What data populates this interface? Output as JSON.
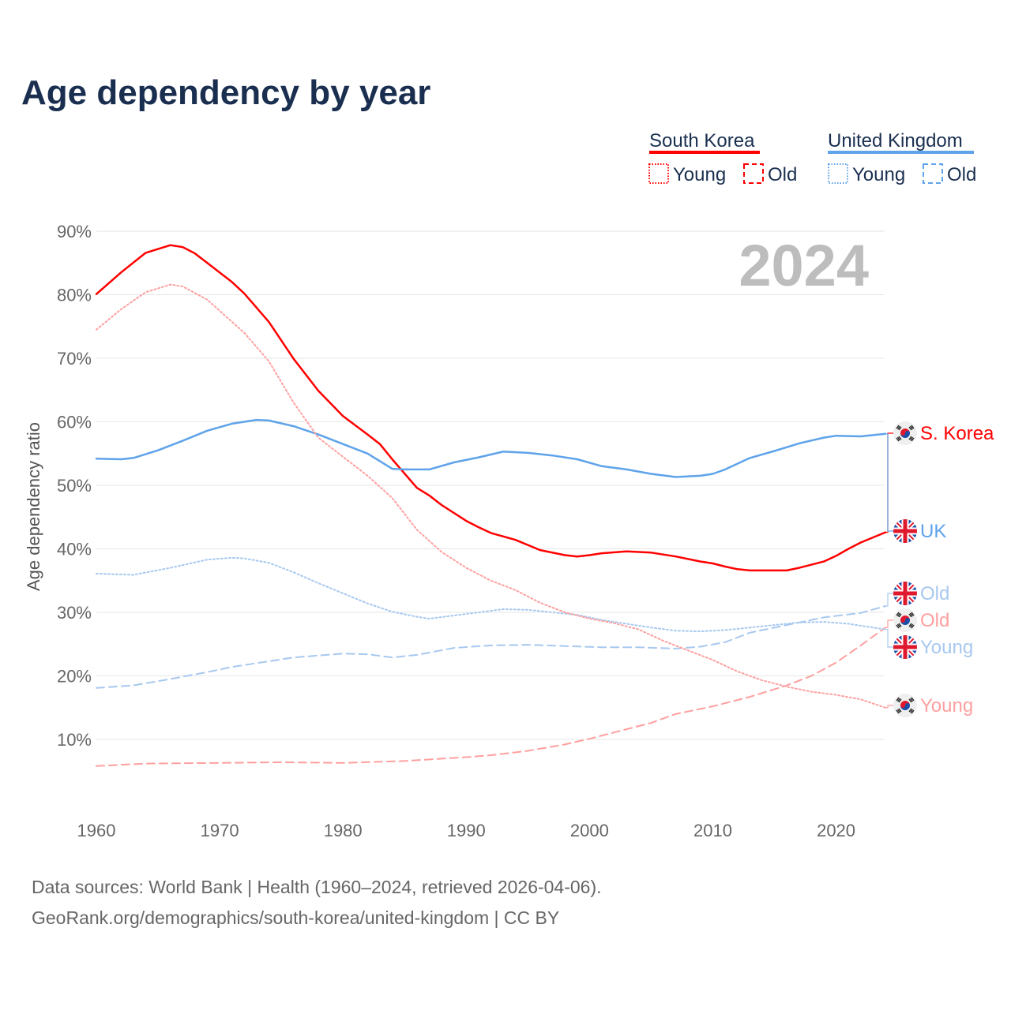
{
  "title": "Age dependency by year",
  "year_watermark": "2024",
  "legend": {
    "groups": [
      {
        "name": "South Korea",
        "color": "#ff0000",
        "sub_color": "#ff0000",
        "items": [
          "Young",
          "Old"
        ]
      },
      {
        "name": "United Kingdom",
        "color": "#5ea3ea",
        "sub_color": "#5ea3ea",
        "items": [
          "Young",
          "Old"
        ]
      }
    ]
  },
  "footer": {
    "line1": "Data sources: World Bank | Health (1960–2024, retrieved 2026-04-06).",
    "line2": "GeoRank.org/demographics/south-korea/united-kingdom | CC BY"
  },
  "chart_data": {
    "type": "line",
    "title": "Age dependency by year",
    "xlabel": "",
    "ylabel": "Age dependency ratio",
    "xlim": [
      1960,
      2024
    ],
    "ylim": [
      0,
      95
    ],
    "x_ticks": [
      1960,
      1970,
      1980,
      1990,
      2000,
      2010,
      2020
    ],
    "x_tick_labels": [
      "1960",
      "1970",
      "1980",
      "1990",
      "2000",
      "2010",
      "2020"
    ],
    "y_ticks": [
      10,
      20,
      30,
      40,
      50,
      60,
      70,
      80,
      90
    ],
    "y_tick_labels": [
      "10%",
      "20%",
      "30%",
      "40%",
      "50%",
      "60%",
      "70%",
      "80%",
      "90%"
    ],
    "grid": true,
    "legend_position": "top-right",
    "series": [
      {
        "name": "S. Korea",
        "label": "S. Korea",
        "country": "kr",
        "style": "solid",
        "color": "#ff0000",
        "points": [
          [
            1960,
            80.1
          ],
          [
            1962,
            83.5
          ],
          [
            1964,
            86.6
          ],
          [
            1966,
            87.8
          ],
          [
            1967,
            87.5
          ],
          [
            1968,
            86.5
          ],
          [
            1969,
            85.0
          ],
          [
            1971,
            82.0
          ],
          [
            1972,
            80.2
          ],
          [
            1974,
            75.7
          ],
          [
            1976,
            69.9
          ],
          [
            1978,
            64.9
          ],
          [
            1980,
            60.9
          ],
          [
            1982,
            58.0
          ],
          [
            1983,
            56.5
          ],
          [
            1984,
            54.1
          ],
          [
            1986,
            49.6
          ],
          [
            1987,
            48.4
          ],
          [
            1988,
            46.9
          ],
          [
            1990,
            44.4
          ],
          [
            1991,
            43.4
          ],
          [
            1992,
            42.5
          ],
          [
            1994,
            41.4
          ],
          [
            1996,
            39.8
          ],
          [
            1998,
            39.0
          ],
          [
            1999,
            38.8
          ],
          [
            2000,
            39.0
          ],
          [
            2001,
            39.3
          ],
          [
            2003,
            39.6
          ],
          [
            2005,
            39.4
          ],
          [
            2007,
            38.8
          ],
          [
            2009,
            38.0
          ],
          [
            2010,
            37.7
          ],
          [
            2011,
            37.2
          ],
          [
            2012,
            36.8
          ],
          [
            2013,
            36.6
          ],
          [
            2016,
            36.6
          ],
          [
            2017,
            37.0
          ],
          [
            2019,
            38.0
          ],
          [
            2020,
            38.9
          ],
          [
            2021,
            40.0
          ],
          [
            2022,
            41.0
          ],
          [
            2024,
            42.6
          ]
        ]
      },
      {
        "name": "UK",
        "label": "UK",
        "country": "uk",
        "style": "solid",
        "color": "#5ea3ea",
        "points": [
          [
            1960,
            54.2
          ],
          [
            1962,
            54.1
          ],
          [
            1963,
            54.3
          ],
          [
            1965,
            55.5
          ],
          [
            1967,
            57.0
          ],
          [
            1969,
            58.6
          ],
          [
            1971,
            59.7
          ],
          [
            1973,
            60.3
          ],
          [
            1974,
            60.2
          ],
          [
            1976,
            59.3
          ],
          [
            1978,
            58.0
          ],
          [
            1980,
            56.5
          ],
          [
            1982,
            55.0
          ],
          [
            1984,
            52.6
          ],
          [
            1985,
            52.5
          ],
          [
            1987,
            52.5
          ],
          [
            1989,
            53.6
          ],
          [
            1991,
            54.4
          ],
          [
            1993,
            55.3
          ],
          [
            1995,
            55.1
          ],
          [
            1997,
            54.7
          ],
          [
            1999,
            54.1
          ],
          [
            2001,
            53.0
          ],
          [
            2003,
            52.5
          ],
          [
            2005,
            51.8
          ],
          [
            2007,
            51.3
          ],
          [
            2009,
            51.5
          ],
          [
            2010,
            51.8
          ],
          [
            2011,
            52.5
          ],
          [
            2013,
            54.3
          ],
          [
            2015,
            55.4
          ],
          [
            2017,
            56.6
          ],
          [
            2019,
            57.5
          ],
          [
            2020,
            57.8
          ],
          [
            2022,
            57.7
          ],
          [
            2024,
            58.1
          ]
        ]
      },
      {
        "name": "UK Old",
        "label": "Old",
        "country": "uk",
        "style": "dashed",
        "color": "#a7c8ef",
        "points": [
          [
            1960,
            18.1
          ],
          [
            1963,
            18.5
          ],
          [
            1966,
            19.5
          ],
          [
            1969,
            20.6
          ],
          [
            1971,
            21.4
          ],
          [
            1973,
            22.0
          ],
          [
            1976,
            22.9
          ],
          [
            1980,
            23.5
          ],
          [
            1982,
            23.4
          ],
          [
            1984,
            22.9
          ],
          [
            1986,
            23.3
          ],
          [
            1989,
            24.4
          ],
          [
            1992,
            24.8
          ],
          [
            1995,
            24.9
          ],
          [
            1998,
            24.7
          ],
          [
            2001,
            24.5
          ],
          [
            2004,
            24.5
          ],
          [
            2007,
            24.3
          ],
          [
            2009,
            24.6
          ],
          [
            2011,
            25.3
          ],
          [
            2013,
            26.8
          ],
          [
            2016,
            28.0
          ],
          [
            2019,
            29.2
          ],
          [
            2022,
            29.9
          ],
          [
            2024,
            31.0
          ]
        ]
      },
      {
        "name": "S. Korea Old",
        "label": "Old",
        "country": "kr",
        "style": "dashed",
        "color": "#ff9f9f",
        "points": [
          [
            1960,
            5.8
          ],
          [
            1964,
            6.2
          ],
          [
            1970,
            6.3
          ],
          [
            1975,
            6.4
          ],
          [
            1980,
            6.3
          ],
          [
            1985,
            6.6
          ],
          [
            1990,
            7.2
          ],
          [
            1992,
            7.5
          ],
          [
            1995,
            8.2
          ],
          [
            1998,
            9.2
          ],
          [
            2000,
            10.1
          ],
          [
            2003,
            11.6
          ],
          [
            2005,
            12.6
          ],
          [
            2007,
            14.0
          ],
          [
            2010,
            15.2
          ],
          [
            2013,
            16.7
          ],
          [
            2016,
            18.5
          ],
          [
            2018,
            20.0
          ],
          [
            2020,
            22.1
          ],
          [
            2022,
            24.8
          ],
          [
            2024,
            27.6
          ]
        ]
      },
      {
        "name": "UK Young",
        "label": "Young",
        "country": "uk",
        "style": "dotted",
        "color": "#a7c8ef",
        "points": [
          [
            1960,
            36.1
          ],
          [
            1963,
            35.9
          ],
          [
            1966,
            37.0
          ],
          [
            1969,
            38.3
          ],
          [
            1971,
            38.6
          ],
          [
            1972,
            38.5
          ],
          [
            1974,
            37.8
          ],
          [
            1976,
            36.3
          ],
          [
            1978,
            34.6
          ],
          [
            1980,
            33.0
          ],
          [
            1982,
            31.4
          ],
          [
            1984,
            30.1
          ],
          [
            1986,
            29.3
          ],
          [
            1987,
            29.0
          ],
          [
            1989,
            29.5
          ],
          [
            1991,
            30.0
          ],
          [
            1993,
            30.5
          ],
          [
            1995,
            30.4
          ],
          [
            1997,
            30.0
          ],
          [
            1999,
            29.6
          ],
          [
            2001,
            28.8
          ],
          [
            2003,
            28.2
          ],
          [
            2005,
            27.6
          ],
          [
            2007,
            27.1
          ],
          [
            2009,
            27.0
          ],
          [
            2011,
            27.2
          ],
          [
            2013,
            27.6
          ],
          [
            2015,
            28.0
          ],
          [
            2017,
            28.4
          ],
          [
            2019,
            28.5
          ],
          [
            2021,
            28.2
          ],
          [
            2024,
            27.3
          ]
        ]
      },
      {
        "name": "S. Korea Young",
        "label": "Young",
        "country": "kr",
        "style": "dotted",
        "color": "#ff9f9f",
        "points": [
          [
            1960,
            74.5
          ],
          [
            1962,
            77.7
          ],
          [
            1964,
            80.4
          ],
          [
            1966,
            81.6
          ],
          [
            1967,
            81.3
          ],
          [
            1969,
            79.2
          ],
          [
            1972,
            74.0
          ],
          [
            1974,
            69.5
          ],
          [
            1976,
            63.0
          ],
          [
            1978,
            57.5
          ],
          [
            1980,
            54.5
          ],
          [
            1982,
            51.5
          ],
          [
            1984,
            48.0
          ],
          [
            1986,
            43.0
          ],
          [
            1988,
            39.5
          ],
          [
            1990,
            37.0
          ],
          [
            1992,
            35.0
          ],
          [
            1994,
            33.5
          ],
          [
            1996,
            31.5
          ],
          [
            1998,
            30.0
          ],
          [
            2000,
            29.0
          ],
          [
            2002,
            28.3
          ],
          [
            2004,
            27.3
          ],
          [
            2006,
            25.5
          ],
          [
            2008,
            24.0
          ],
          [
            2010,
            22.5
          ],
          [
            2012,
            20.7
          ],
          [
            2014,
            19.3
          ],
          [
            2016,
            18.3
          ],
          [
            2018,
            17.5
          ],
          [
            2020,
            17.0
          ],
          [
            2022,
            16.3
          ],
          [
            2024,
            15.0
          ]
        ]
      }
    ]
  }
}
